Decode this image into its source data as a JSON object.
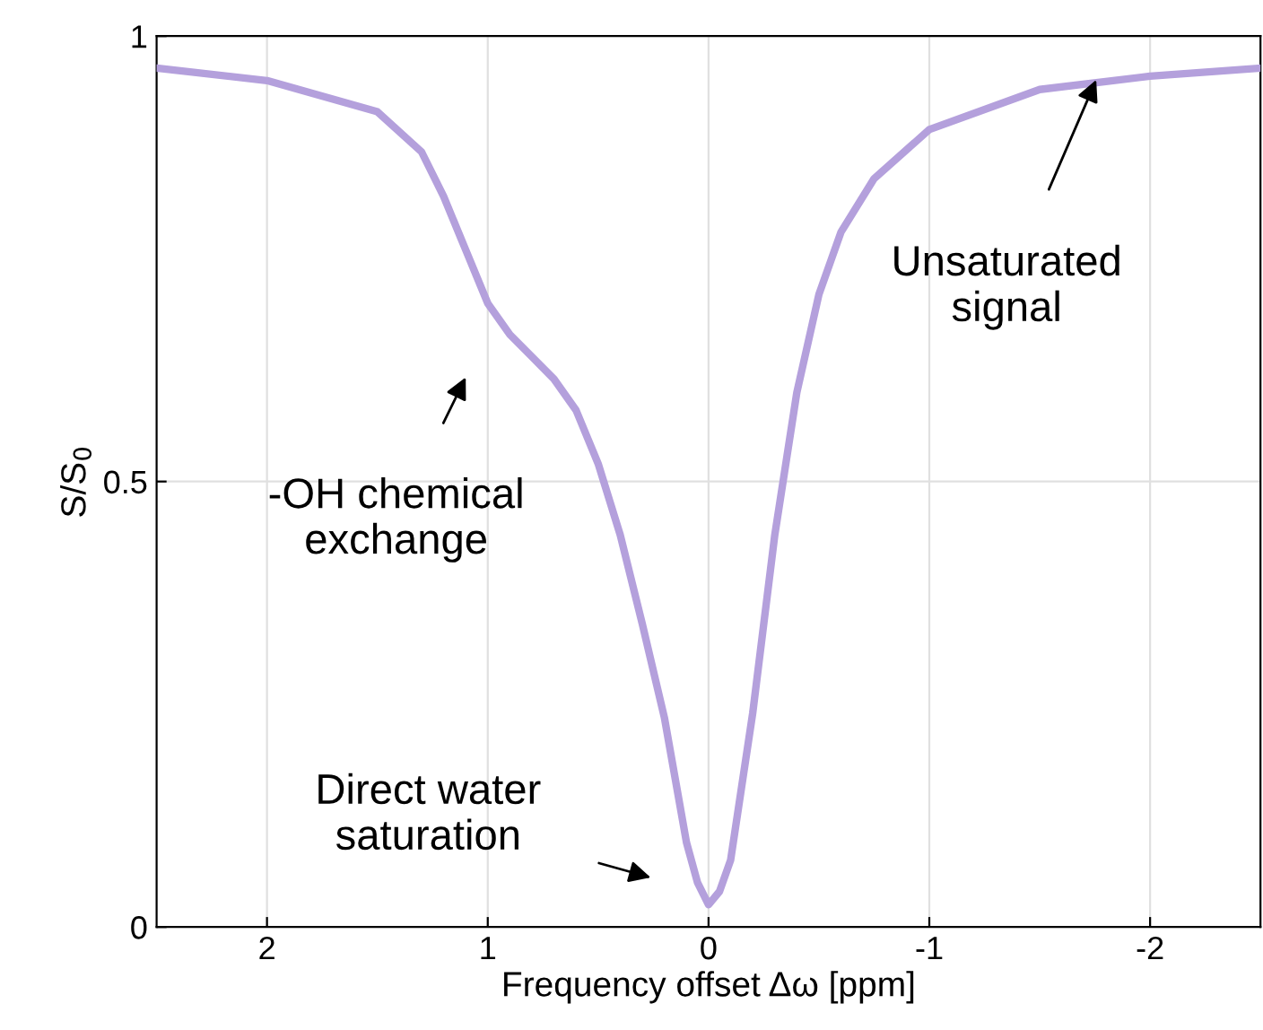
{
  "chart_data": {
    "type": "line",
    "xlabel": "Frequency offset Δω [ppm]",
    "ylabel": "S/S$_{0}$",
    "series": [
      {
        "color": "#b4a0dc",
        "x": [
          2.5,
          2.0,
          1.5,
          1.3,
          1.2,
          1.1,
          1.0,
          0.9,
          0.8,
          0.7,
          0.6,
          0.5,
          0.4,
          0.3,
          0.2,
          0.1,
          0.05,
          0.0,
          -0.05,
          -0.1,
          -0.2,
          -0.3,
          -0.4,
          -0.5,
          -0.6,
          -0.75,
          -1.0,
          -1.5,
          -2.0,
          -2.5
        ],
        "values": [
          0.964,
          0.95,
          0.915,
          0.87,
          0.82,
          0.76,
          0.7,
          0.665,
          0.64,
          0.615,
          0.58,
          0.52,
          0.44,
          0.34,
          0.235,
          0.095,
          0.05,
          0.025,
          0.04,
          0.075,
          0.24,
          0.44,
          0.6,
          0.71,
          0.78,
          0.84,
          0.895,
          0.94,
          0.955,
          0.964
        ]
      }
    ],
    "xlim": [
      2.5,
      -2.5
    ],
    "ylim": [
      0,
      1
    ],
    "xticks": [
      2,
      1,
      0,
      -1,
      -2
    ],
    "yticks": [
      0,
      0.5,
      1
    ],
    "grid": true,
    "line_style": "solid",
    "marker": "none",
    "annotations": [
      "-OH chemical\nexchange",
      "Unsaturated\nsignal",
      "Direct water\nsaturation"
    ]
  }
}
